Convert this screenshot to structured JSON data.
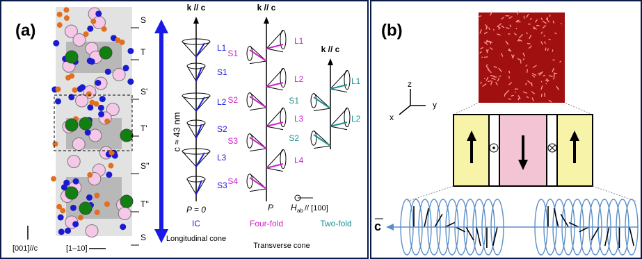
{
  "panel_a": {
    "label": "(a)",
    "layers": [
      "S",
      "T",
      "S'",
      "T'",
      "S''",
      "T''",
      "S"
    ],
    "axis_up": "[001]//c",
    "axis_right": "[1–10]",
    "period": "c ≈ 43 nm",
    "longitudinal": {
      "axis": "k // c",
      "cones": [
        "L1",
        "S1",
        "L2",
        "S2",
        "L3",
        "S3"
      ],
      "polarization": "P = 0",
      "phase": "IC",
      "caption": "Longitudinal cone"
    },
    "fourfold": {
      "axis": "k // c",
      "cones": [
        "L1",
        "S1",
        "L2",
        "S2",
        "L3",
        "S3",
        "L4",
        "S4"
      ],
      "phase": "Four-fold"
    },
    "twofold": {
      "axis": "k // c",
      "cones": [
        "L1",
        "S1",
        "L2",
        "S2"
      ],
      "phase": "Two-fold"
    },
    "polarization": "P",
    "field_symbol": "H",
    "field_subscript": "ab",
    "field_direction": "// [100]",
    "caption": "Transverse cone"
  },
  "panel_b": {
    "label": "(b)",
    "axes": [
      "z",
      "y",
      "x"
    ],
    "c_vector": "c"
  }
}
